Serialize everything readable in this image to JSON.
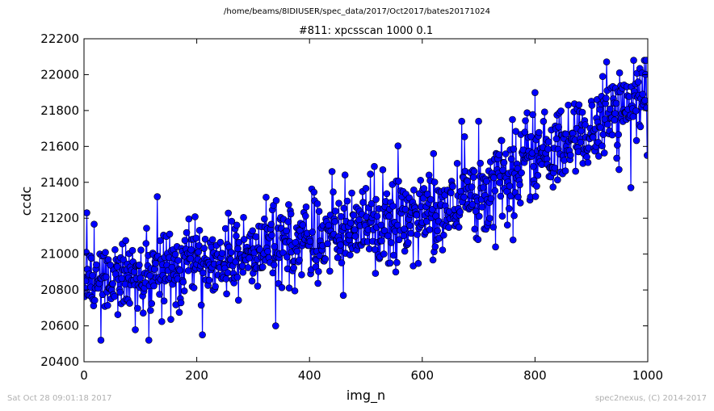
{
  "suptitle": "/home/beams/8IDIUSER/spec_data/2017/Oct2017/bates20171024",
  "footer": {
    "left": "Sat Oct 28 09:01:18 2017",
    "right": "spec2nexus, (C) 2014-2017"
  },
  "colors": {
    "series": "#0000ff",
    "marker_edge": "#000000",
    "axes": "#000000",
    "footer_text": "#b0b0b0"
  },
  "chart_data": {
    "type": "line",
    "title": "#811: xpcsscan 1000 0.1",
    "xlabel": "img_n",
    "ylabel": "ccdc",
    "xlim": [
      0,
      1000
    ],
    "ylim": [
      20400,
      22200
    ],
    "xticks": [
      0,
      200,
      400,
      600,
      800,
      1000
    ],
    "yticks": [
      20400,
      20600,
      20800,
      21000,
      21200,
      21400,
      21600,
      21800,
      22000,
      22200
    ],
    "grid": false,
    "legend": "none",
    "marker": "circle",
    "series": [
      {
        "point_count": 1000,
        "x_range": [
          0,
          999
        ],
        "trend": {
          "x": [
            0,
            100,
            200,
            300,
            400,
            500,
            600,
            700,
            800,
            900,
            999
          ],
          "y": [
            20820,
            20880,
            20940,
            21010,
            21080,
            21150,
            21210,
            21330,
            21520,
            21690,
            21880
          ]
        },
        "spread": 110,
        "notable_points": [
          {
            "x": 5,
            "y": 21230
          },
          {
            "x": 30,
            "y": 20520
          },
          {
            "x": 115,
            "y": 20520
          },
          {
            "x": 130,
            "y": 21320
          },
          {
            "x": 210,
            "y": 20550
          },
          {
            "x": 340,
            "y": 20600
          },
          {
            "x": 440,
            "y": 21460
          },
          {
            "x": 460,
            "y": 20770
          },
          {
            "x": 530,
            "y": 21470
          },
          {
            "x": 620,
            "y": 21560
          },
          {
            "x": 670,
            "y": 21740
          },
          {
            "x": 700,
            "y": 21740
          },
          {
            "x": 730,
            "y": 21040
          },
          {
            "x": 760,
            "y": 21750
          },
          {
            "x": 800,
            "y": 21900
          },
          {
            "x": 920,
            "y": 21990
          },
          {
            "x": 950,
            "y": 22010
          },
          {
            "x": 970,
            "y": 21370
          },
          {
            "x": 990,
            "y": 22010
          }
        ]
      }
    ]
  }
}
